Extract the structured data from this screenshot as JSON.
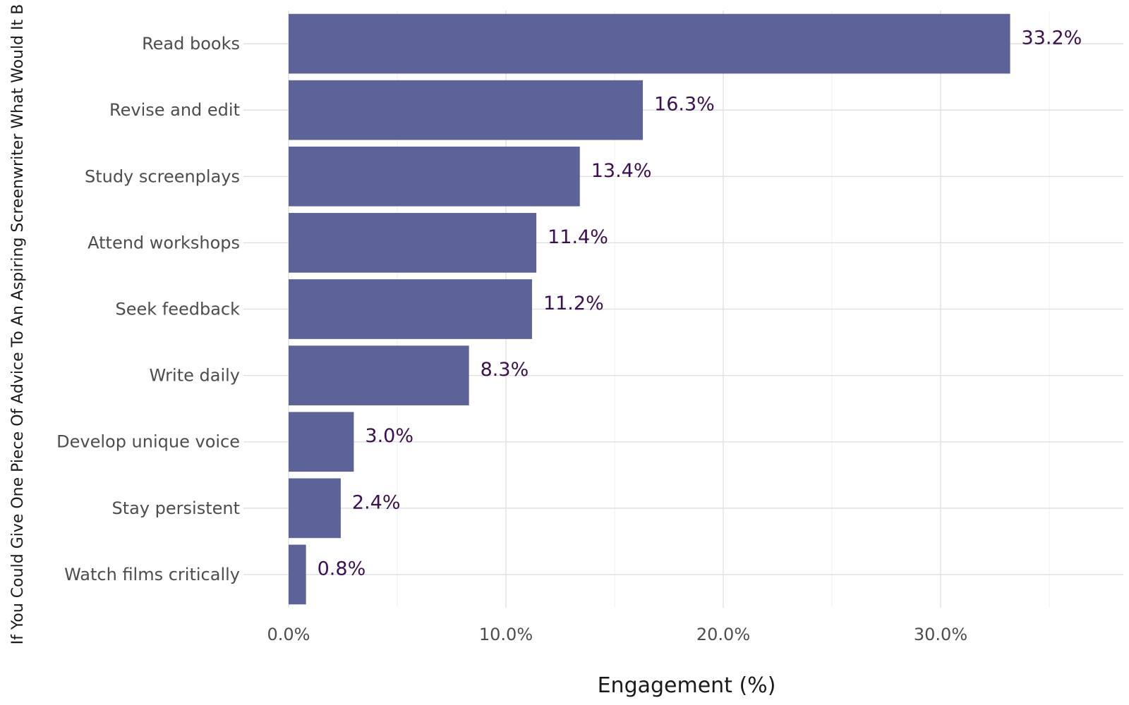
{
  "chart_data": {
    "type": "bar",
    "orientation": "horizontal",
    "xlabel": "Engagement (%)",
    "ylabel": "If You Could Give One Piece Of Advice To An Aspiring Screenwriter What Would It B",
    "categories": [
      "Read books",
      "Revise and edit",
      "Study screenplays",
      "Attend workshops",
      "Seek feedback",
      "Write daily",
      "Develop unique voice",
      "Stay persistent",
      "Watch films critically"
    ],
    "values": [
      33.2,
      16.3,
      13.4,
      11.4,
      11.2,
      8.3,
      3.0,
      2.4,
      0.8
    ],
    "data_labels": [
      "33.2%",
      "16.3%",
      "13.4%",
      "11.4%",
      "11.2%",
      "8.3%",
      "3.0%",
      "2.4%",
      "0.8%"
    ],
    "xticks": [
      0,
      10,
      20,
      30
    ],
    "xtick_labels": [
      "0.0%",
      "10.0%",
      "20.0%",
      "30.0%"
    ],
    "xlim": [
      0,
      38.4
    ],
    "grid": true,
    "colors": {
      "bar": "#5b6399",
      "data_label": "#3b0f52",
      "grid": "#dedede"
    }
  }
}
